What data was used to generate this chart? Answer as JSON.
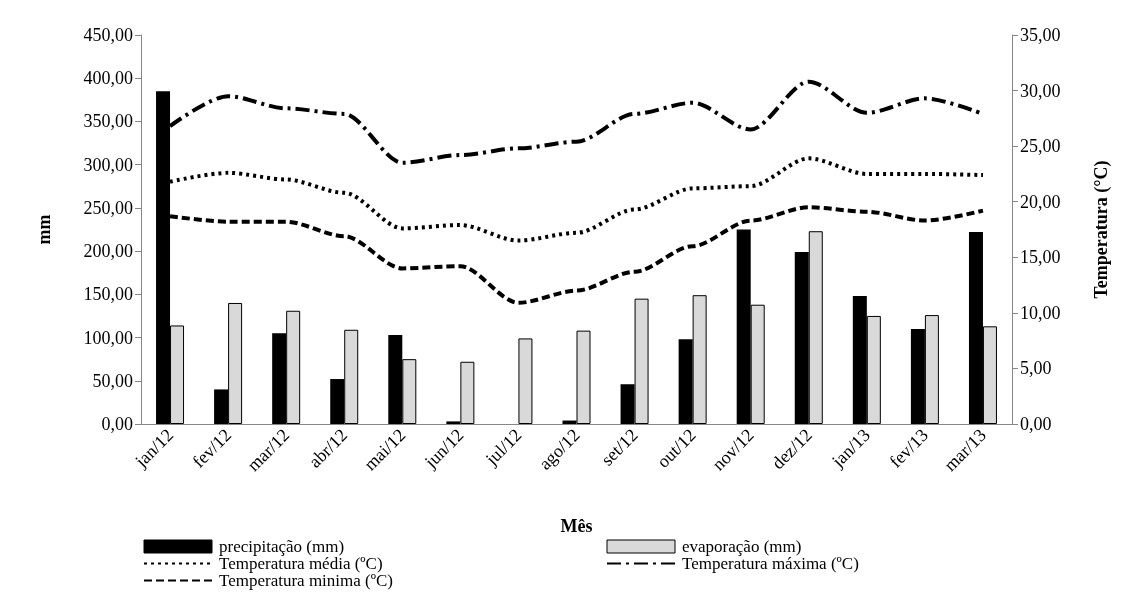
{
  "chart_data": {
    "type": "bar",
    "xlabel": "Mês",
    "ylabel": "mm",
    "y2label": "Temperatura (°C)",
    "categories": [
      "jan/12",
      "fev/12",
      "mar/12",
      "abr/12",
      "mai/12",
      "jun/12",
      "jul/12",
      "ago/12",
      "set/12",
      "out/12",
      "nov/12",
      "dez/12",
      "jan/13",
      "fev/13",
      "mar/13"
    ],
    "series": [
      {
        "name": "precipitação (mm)",
        "color": "#000000",
        "values": [
          385,
          40,
          105,
          52,
          103,
          3,
          0,
          4,
          46,
          98,
          225,
          199,
          148,
          110,
          222
        ]
      },
      {
        "name": "evaporação (mm)",
        "color": "#d9d9d9",
        "values": [
          114,
          140,
          131,
          109,
          75,
          72,
          99,
          108,
          145,
          149,
          138,
          223,
          125,
          126,
          113
        ]
      },
      {
        "name": "Temperatura média (ºC)",
        "type": "line",
        "axis": "y2",
        "color": "#000000",
        "line_style": "dotted",
        "values": [
          21.8,
          22.6,
          22.0,
          20.8,
          17.6,
          17.9,
          16.5,
          17.2,
          19.3,
          21.2,
          21.4,
          23.9,
          22.5,
          22.5,
          22.4
        ]
      },
      {
        "name": "Temperatura máxima (ºC)",
        "type": "line",
        "axis": "y2",
        "color": "#000000",
        "line_style": "dashdot",
        "values": [
          26.8,
          29.5,
          28.4,
          27.9,
          23.5,
          24.2,
          24.8,
          25.4,
          27.9,
          28.9,
          26.5,
          30.8,
          28.0,
          29.3,
          27.9
        ]
      },
      {
        "name": "Temperatura minima (ºC)",
        "type": "line",
        "axis": "y2",
        "color": "#000000",
        "line_style": "dashed",
        "values": [
          18.7,
          18.2,
          18.2,
          16.9,
          14.0,
          14.2,
          10.9,
          12.0,
          13.7,
          16.0,
          18.3,
          19.5,
          19.1,
          18.3,
          19.2
        ]
      }
    ],
    "ylim": [
      0,
      450
    ],
    "yticks": [
      {
        "value": 0,
        "label": "0,00"
      },
      {
        "value": 50,
        "label": "50,00"
      },
      {
        "value": 100,
        "label": "100,00"
      },
      {
        "value": 150,
        "label": "150,00"
      },
      {
        "value": 200,
        "label": "200,00"
      },
      {
        "value": 250,
        "label": "250,00"
      },
      {
        "value": 300,
        "label": "300,00"
      },
      {
        "value": 350,
        "label": "350,00"
      },
      {
        "value": 400,
        "label": "400,00"
      },
      {
        "value": 450,
        "label": "450,00"
      }
    ],
    "y2lim": [
      0,
      35
    ],
    "y2ticks": [
      {
        "value": 0,
        "label": "0,00"
      },
      {
        "value": 5,
        "label": "5,00"
      },
      {
        "value": 10,
        "label": "10,00"
      },
      {
        "value": 15,
        "label": "15,00"
      },
      {
        "value": 20,
        "label": "20,00"
      },
      {
        "value": 25,
        "label": "25,00"
      },
      {
        "value": 30,
        "label": "30,00"
      },
      {
        "value": 35,
        "label": "35,00"
      }
    ],
    "grid": false,
    "marker": "none",
    "legend": "bottom"
  }
}
